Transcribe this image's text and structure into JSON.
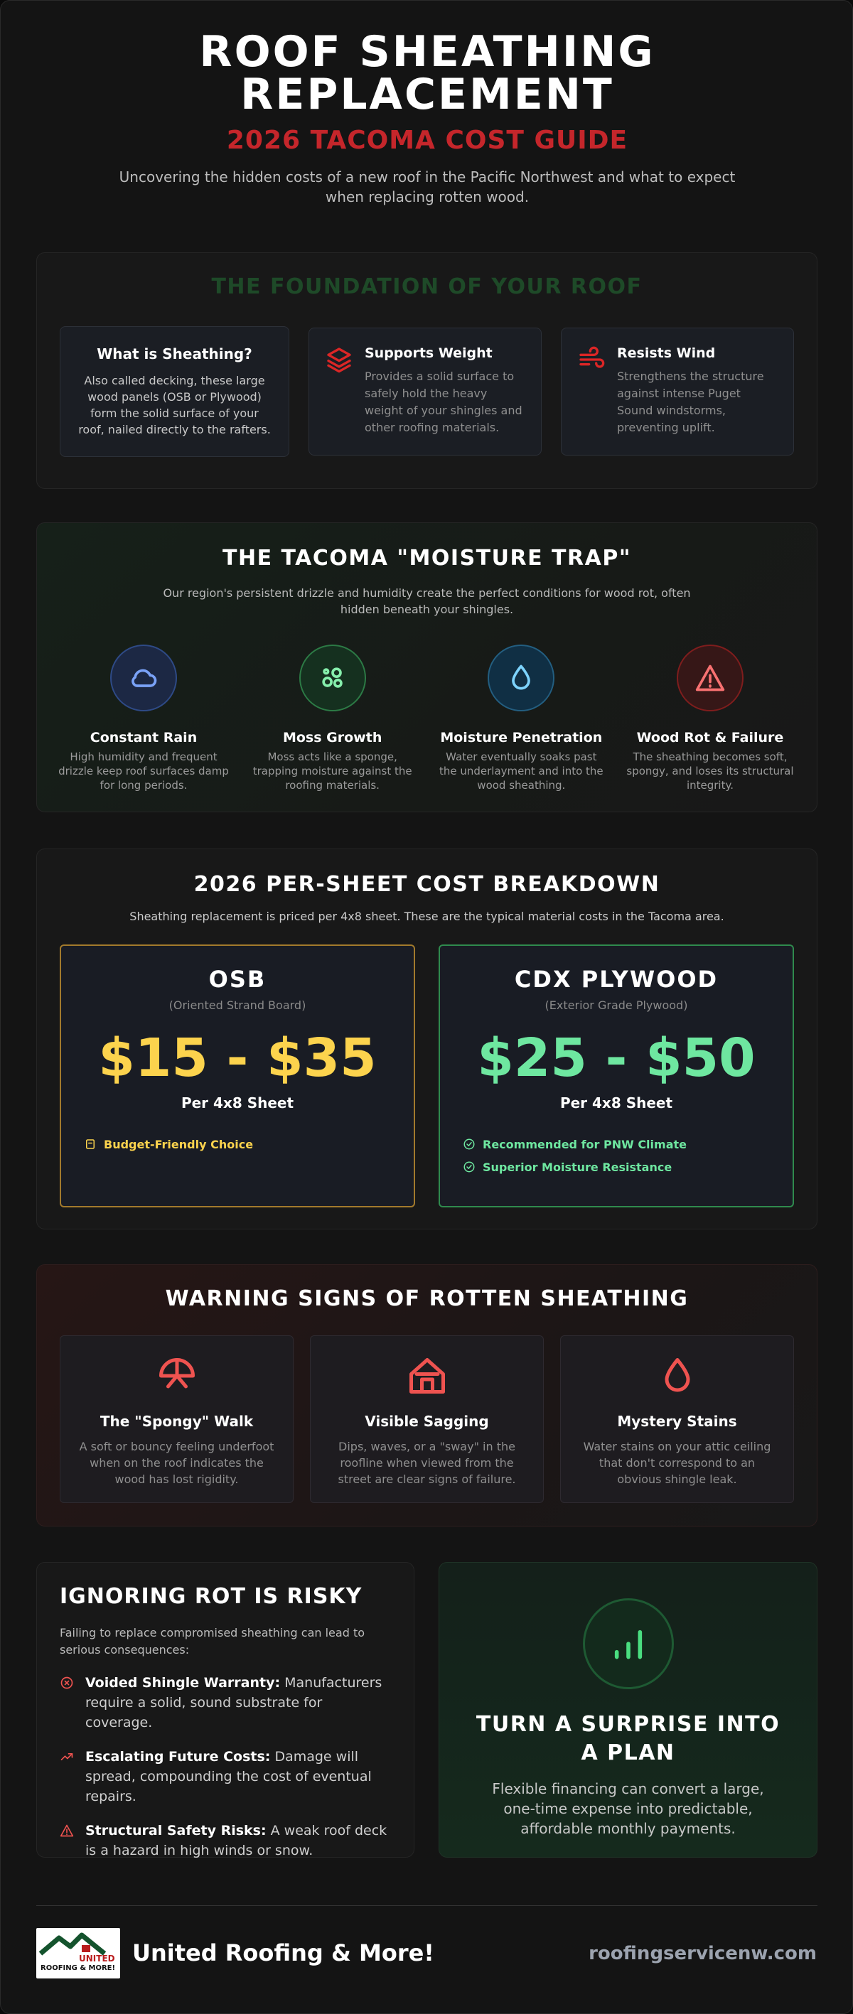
{
  "header": {
    "title": "ROOF SHEATHING REPLACEMENT",
    "subtitle": "2026 TACOMA COST GUIDE",
    "description": "Uncovering the hidden costs of a new roof in the Pacific Northwest and what to expect when replacing rotten wood."
  },
  "foundation": {
    "heading": "THE FOUNDATION OF YOUR ROOF",
    "cards": [
      {
        "title": "What is Sheathing?",
        "text": "Also called decking, these large wood panels (OSB or Plywood) form the solid surface of your roof, nailed directly to the rafters."
      },
      {
        "title": "Supports Weight",
        "text": "Provides a solid surface to safely hold the heavy weight of your shingles and other roofing materials."
      },
      {
        "title": "Resists Wind",
        "text": "Strengthens the structure against intense Puget Sound windstorms, preventing uplift."
      }
    ]
  },
  "moisture": {
    "heading": "THE TACOMA \"MOISTURE TRAP\"",
    "description": "Our region's persistent drizzle and humidity create the perfect conditions for wood rot, often hidden beneath your shingles.",
    "items": [
      {
        "title": "Constant Rain",
        "text": "High humidity and frequent drizzle keep roof surfaces damp for long periods."
      },
      {
        "title": "Moss Growth",
        "text": "Moss acts like a sponge, trapping moisture against the roofing materials."
      },
      {
        "title": "Moisture Penetration",
        "text": "Water eventually soaks past the underlayment and into the wood sheathing."
      },
      {
        "title": "Wood Rot & Failure",
        "text": "The sheathing becomes soft, spongy, and loses its structural integrity."
      }
    ]
  },
  "cost": {
    "heading": "2026 PER-SHEET COST BREAKDOWN",
    "description": "Sheathing replacement is priced per 4x8 sheet. These are the typical material costs in the Tacoma area.",
    "options": [
      {
        "name": "OSB",
        "subtitle": "(Oriented Strand Board)",
        "price": "$15 - $35",
        "unit": "Per 4x8 Sheet",
        "features": [
          "Budget-Friendly Choice"
        ]
      },
      {
        "name": "CDX PLYWOOD",
        "subtitle": "(Exterior Grade Plywood)",
        "price": "$25 - $50",
        "unit": "Per 4x8 Sheet",
        "features": [
          "Recommended for PNW Climate",
          "Superior Moisture Resistance"
        ]
      }
    ]
  },
  "warning": {
    "heading": "WARNING SIGNS OF ROTTEN SHEATHING",
    "items": [
      {
        "title": "The \"Spongy\" Walk",
        "text": "A soft or bouncy feeling underfoot when on the roof indicates the wood has lost rigidity."
      },
      {
        "title": "Visible Sagging",
        "text": "Dips, waves, or a \"sway\" in the roofline when viewed from the street are clear signs of failure."
      },
      {
        "title": "Mystery Stains",
        "text": "Water stains on your attic ceiling that don't correspond to an obvious shingle leak."
      }
    ]
  },
  "risk": {
    "heading": "IGNORING ROT IS RISKY",
    "intro": "Failing to replace compromised sheathing can lead to serious consequences:",
    "items": [
      {
        "label": "Voided Shingle Warranty:",
        "text": "Manufacturers require a solid, sound substrate for coverage."
      },
      {
        "label": "Escalating Future Costs:",
        "text": "Damage will spread, compounding the cost of eventual repairs."
      },
      {
        "label": "Structural Safety Risks:",
        "text": "A weak roof deck is a hazard in high winds or snow."
      }
    ]
  },
  "financing": {
    "heading": "TURN A SURPRISE INTO A PLAN",
    "text": "Flexible financing can convert a large, one-time expense into predictable, affordable monthly payments."
  },
  "footer": {
    "logo": {
      "line1": "UNITED",
      "line2": "ROOFING & MORE!"
    },
    "brand": "United Roofing & More!",
    "website": "roofingservicenw.com"
  }
}
